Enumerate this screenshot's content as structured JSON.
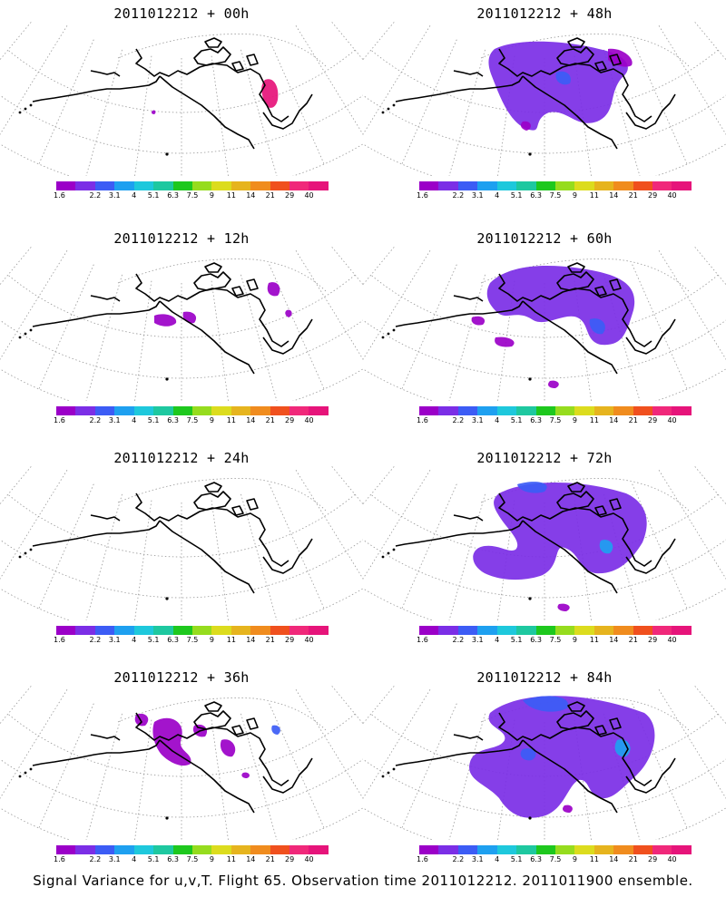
{
  "panels": [
    {
      "title": "2011012212 + 00h",
      "lead": "00h"
    },
    {
      "title": "2011012212 + 48h",
      "lead": "48h"
    },
    {
      "title": "2011012212 + 12h",
      "lead": "12h"
    },
    {
      "title": "2011012212 + 60h",
      "lead": "60h"
    },
    {
      "title": "2011012212 + 24h",
      "lead": "24h"
    },
    {
      "title": "2011012212 + 72h",
      "lead": "72h"
    },
    {
      "title": "2011012212 + 36h",
      "lead": "36h"
    },
    {
      "title": "2011012212 + 84h",
      "lead": "84h"
    }
  ],
  "colorbar": {
    "labels": [
      "1.6",
      "2.2",
      "3.1",
      "4",
      "5.1",
      "6.3",
      "7.5",
      "9",
      "11",
      "14",
      "21",
      "29",
      "40"
    ],
    "colors": [
      "#9b00c8",
      "#7b2ee6",
      "#3c5cf5",
      "#1ea0f0",
      "#1ec8dc",
      "#1ec8a0",
      "#1ec81e",
      "#96dc1e",
      "#dcdc1e",
      "#e6b41e",
      "#f08c1e",
      "#f0501e",
      "#f0287a",
      "#e6147a"
    ]
  },
  "footer": "Signal Variance for u,v,T. Flight 65. Observation time 2011012212. 2011011900 ensemble."
}
